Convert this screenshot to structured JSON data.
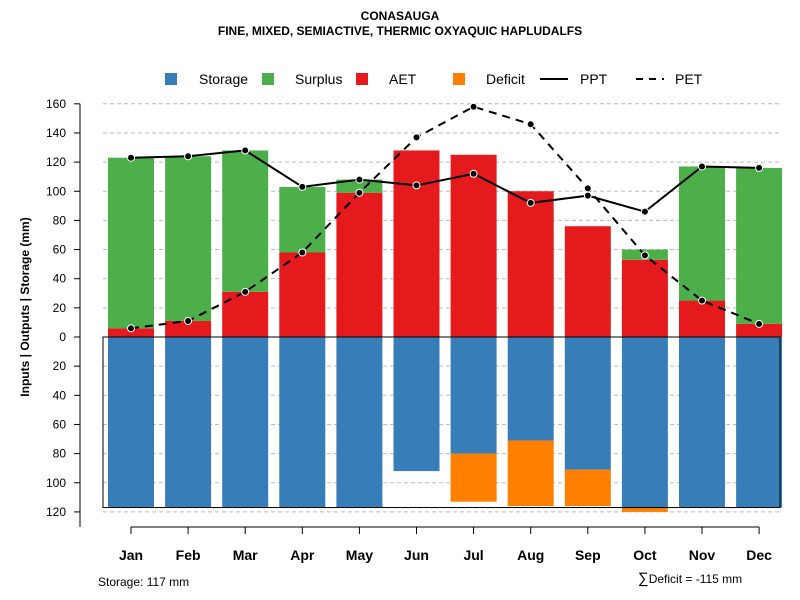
{
  "title": "CONASAUGA",
  "subtitle": "FINE, MIXED, SEMIACTIVE, THERMIC OXYAQUIC HAPLUDALFS",
  "footer": {
    "storage_label": "Storage: 117 mm",
    "deficit_symbol": "∑",
    "deficit_label": "Deficit = -115 mm"
  },
  "colors": {
    "storage": "#377EB8",
    "surplus": "#4DAF4A",
    "aet": "#E41A1C",
    "deficit": "#FF7F00",
    "line": "#000000",
    "grid": "#BBBBBB"
  },
  "chart_data": {
    "type": "bar",
    "ylabel": "Inputs | Outputs | Storage    (mm)",
    "ylim": [
      -125,
      165
    ],
    "y_ticks": [
      160,
      140,
      120,
      100,
      80,
      60,
      40,
      20,
      0,
      -20,
      -40,
      -60,
      -80,
      -100,
      -120
    ],
    "y_tick_labels": [
      "160",
      "140",
      "120",
      "100",
      "80",
      "60",
      "40",
      "20",
      "0",
      "20",
      "40",
      "60",
      "80",
      "100",
      "120"
    ],
    "legend": [
      {
        "label": "Storage",
        "kind": "box",
        "color_key": "storage"
      },
      {
        "label": "Surplus",
        "kind": "box",
        "color_key": "surplus"
      },
      {
        "label": "AET",
        "kind": "box",
        "color_key": "aet"
      },
      {
        "label": "Deficit",
        "kind": "box",
        "color_key": "deficit"
      },
      {
        "label": "PPT",
        "kind": "solid"
      },
      {
        "label": "PET",
        "kind": "dashed"
      }
    ],
    "categories": [
      "Jan",
      "Feb",
      "Mar",
      "Apr",
      "May",
      "Jun",
      "Jul",
      "Aug",
      "Sep",
      "Oct",
      "Nov",
      "Dec"
    ],
    "aet": [
      6,
      11,
      31,
      58,
      99,
      128,
      125,
      100,
      76,
      53,
      25,
      9
    ],
    "surplus": [
      117,
      113,
      97,
      45,
      9,
      0,
      0,
      0,
      0,
      7,
      92,
      107
    ],
    "storage": [
      -117,
      -117,
      -117,
      -117,
      -117,
      -92,
      -80,
      -71,
      -91,
      -117,
      -117,
      -117
    ],
    "storage_gap": [
      0,
      0,
      0,
      0,
      0,
      9,
      0,
      0,
      0,
      0,
      0,
      0
    ],
    "deficit": [
      0,
      0,
      0,
      0,
      0,
      0,
      33,
      45,
      25,
      3,
      0,
      0
    ],
    "ppt": [
      123,
      124,
      128,
      103,
      108,
      104,
      112,
      92,
      97,
      86,
      117,
      116
    ],
    "pet": [
      6,
      11,
      31,
      58,
      99,
      137,
      158,
      146,
      102,
      56,
      25,
      9
    ]
  }
}
